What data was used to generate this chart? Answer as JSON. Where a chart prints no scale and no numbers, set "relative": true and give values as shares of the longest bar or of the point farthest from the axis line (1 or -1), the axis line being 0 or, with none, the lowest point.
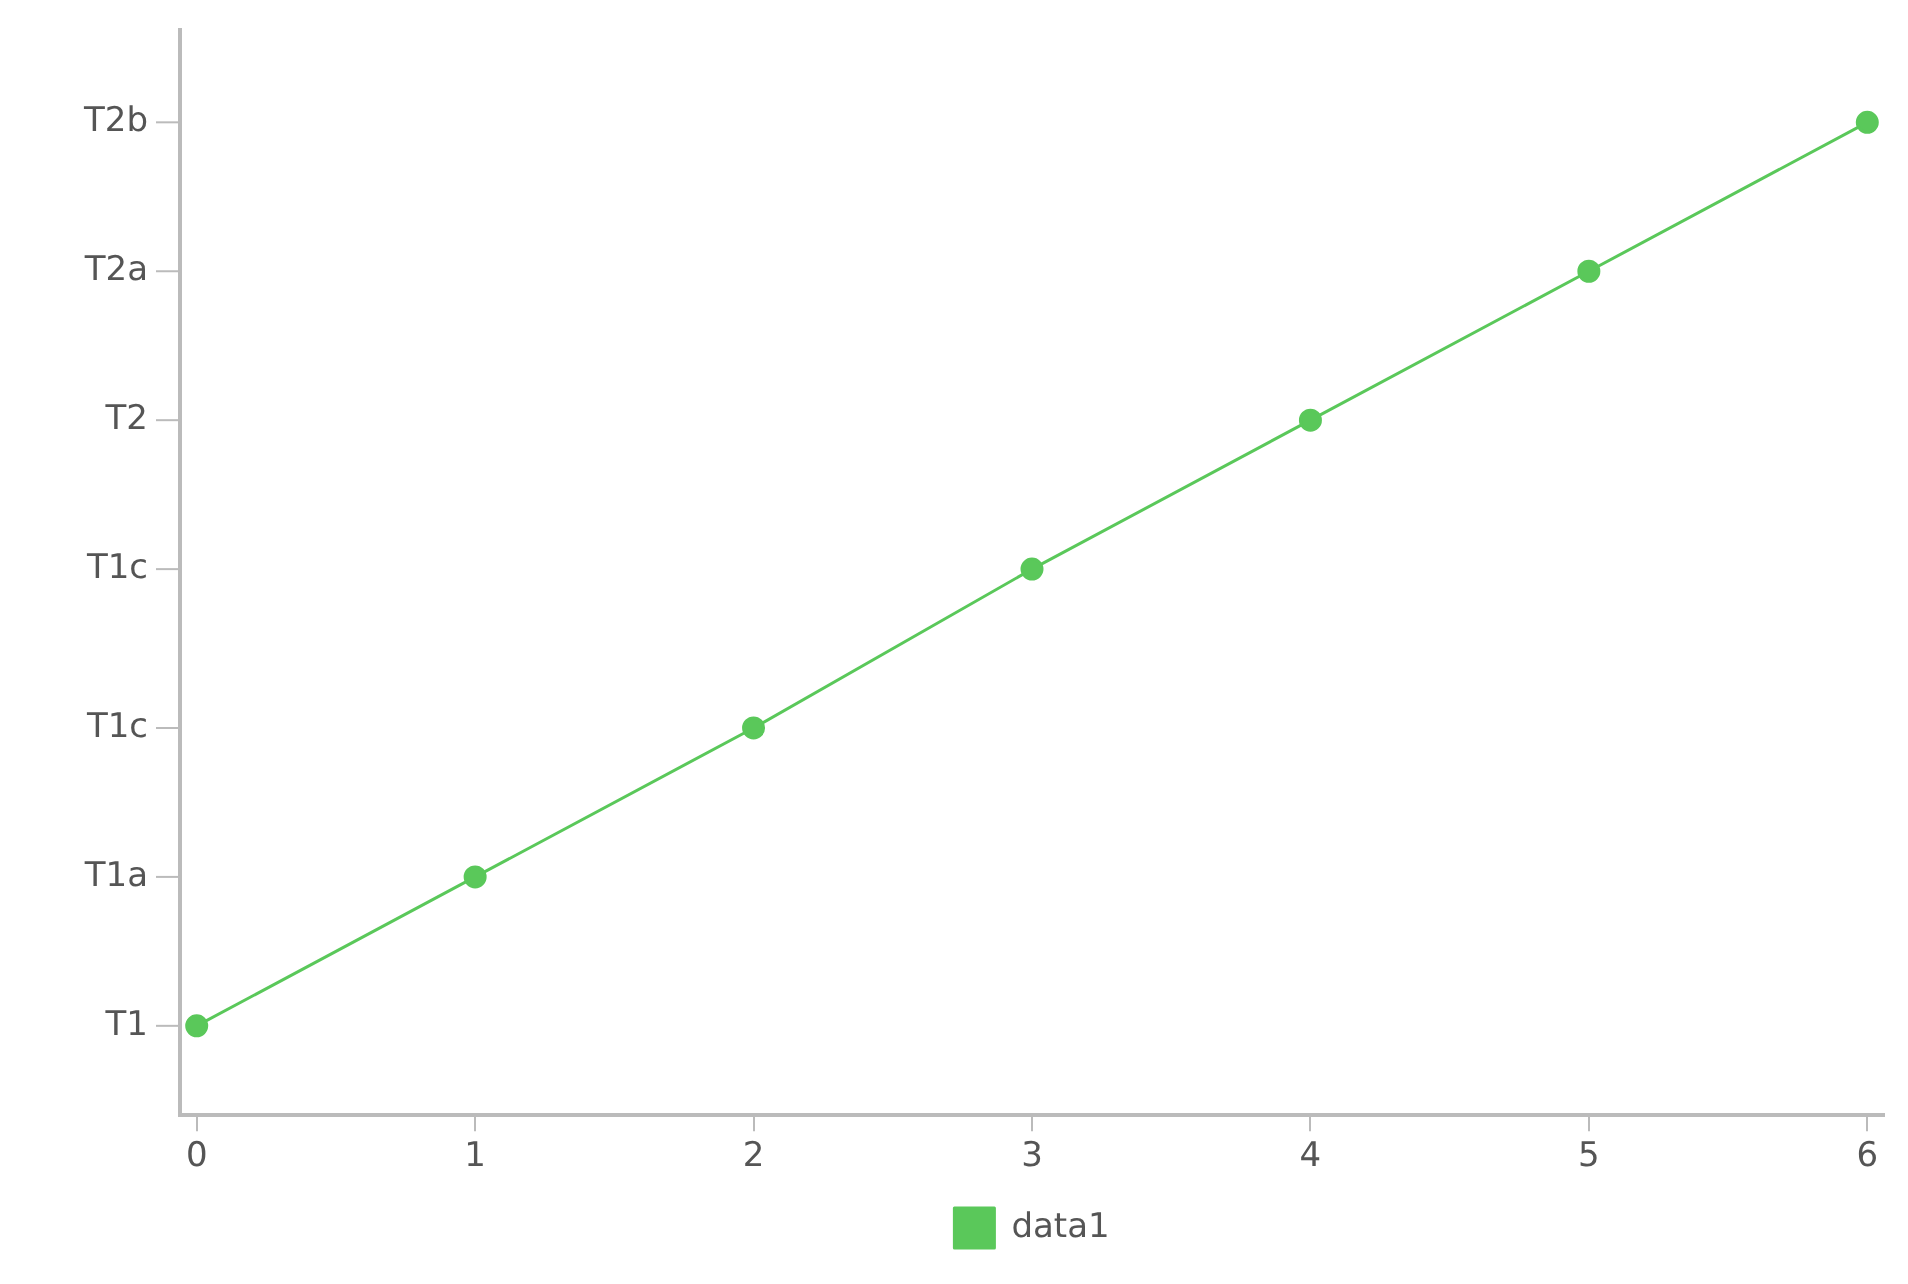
{
  "chart_data": {
    "type": "line",
    "relative": true,
    "x": [
      0,
      1,
      2,
      3,
      4,
      5,
      6
    ],
    "series": [
      {
        "name": "data1",
        "color": "#5ac85a",
        "values": [
          0.09,
          0.24,
          0.39,
          0.55,
          0.7,
          0.85,
          1.0
        ]
      }
    ],
    "xlim": [
      -0.06,
      6.06
    ],
    "xticks": [
      0,
      1,
      2,
      3,
      4,
      5,
      6
    ],
    "annotations": [
      "T1",
      "T1a",
      "T1c",
      "T1c",
      "T2",
      "T2a",
      "T2b"
    ],
    "grid": false,
    "legend": "bottom",
    "marker": "circle",
    "line_style": "solid"
  }
}
